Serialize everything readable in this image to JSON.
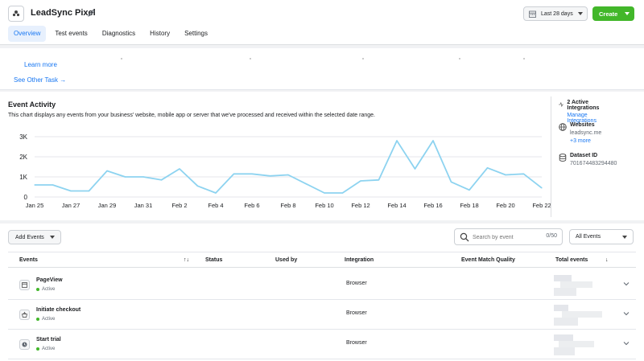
{
  "header": {
    "title": "LeadSync Pixel",
    "tabs": [
      {
        "label": "Overview",
        "active": true
      },
      {
        "label": "Test events"
      },
      {
        "label": "Diagnostics"
      },
      {
        "label": "History"
      },
      {
        "label": "Settings"
      }
    ],
    "date_range_label": "Last 28 days",
    "create_label": "Create"
  },
  "tasks": {
    "learn_more": "Learn more",
    "see_other_task": "See Other Task →"
  },
  "activity": {
    "title": "Event Activity",
    "description": "This chart displays any events from your business' website, mobile app or server that we've processed and received within the selected date range."
  },
  "chart_data": {
    "type": "line",
    "x": [
      "Jan 25",
      "Jan 26",
      "Jan 27",
      "Jan 28",
      "Jan 29",
      "Jan 30",
      "Jan 31",
      "Feb 1",
      "Feb 2",
      "Feb 3",
      "Feb 4",
      "Feb 5",
      "Feb 6",
      "Feb 7",
      "Feb 8",
      "Feb 9",
      "Feb 10",
      "Feb 11",
      "Feb 12",
      "Feb 13",
      "Feb 14",
      "Feb 15",
      "Feb 16",
      "Feb 17",
      "Feb 18",
      "Feb 19",
      "Feb 20",
      "Feb 21",
      "Feb 22"
    ],
    "x_tick_labels": [
      "Jan 25",
      "Jan 27",
      "Jan 29",
      "Jan 31",
      "Feb 2",
      "Feb 4",
      "Feb 6",
      "Feb 8",
      "Feb 10",
      "Feb 12",
      "Feb 14",
      "Feb 16",
      "Feb 18",
      "Feb 20",
      "Feb 22"
    ],
    "values": [
      600,
      600,
      300,
      300,
      1300,
      1000,
      1000,
      850,
      1400,
      550,
      200,
      1150,
      1150,
      1050,
      1100,
      650,
      200,
      200,
      800,
      850,
      2800,
      1400,
      2800,
      750,
      350,
      1450,
      1100,
      1150,
      450
    ],
    "y_ticks": [
      "0",
      "1K",
      "2K",
      "3K"
    ],
    "ylim": [
      0,
      3000
    ],
    "grid": true,
    "line_color": "#8dd3f0"
  },
  "side": {
    "integrations_title": "2 Active Integrations",
    "integrations_link": "Manage Integrations",
    "websites_title": "Websites",
    "website": "leadsync.me",
    "more_link": "+3 more",
    "dataset_title": "Dataset ID",
    "dataset_id": "701674483294480"
  },
  "events": {
    "add_label": "Add Events",
    "search_placeholder": "Search by event",
    "search_count": "0/50",
    "filter_label": "All Events",
    "columns": {
      "events": "Events",
      "sort": "↑↓",
      "status": "Status",
      "used_by": "Used by",
      "integration": "Integration",
      "quality": "Event Match Quality",
      "total": "Total events",
      "total_sort": "↓"
    },
    "rows": [
      {
        "name": "PageView",
        "status": "Active",
        "integration": "Browser",
        "icon": "page-icon"
      },
      {
        "name": "Initiate checkout",
        "status": "Active",
        "integration": "Browser",
        "icon": "basket-icon"
      },
      {
        "name": "Start trial",
        "status": "Active",
        "integration": "Browser",
        "icon": "clock-icon"
      }
    ]
  }
}
